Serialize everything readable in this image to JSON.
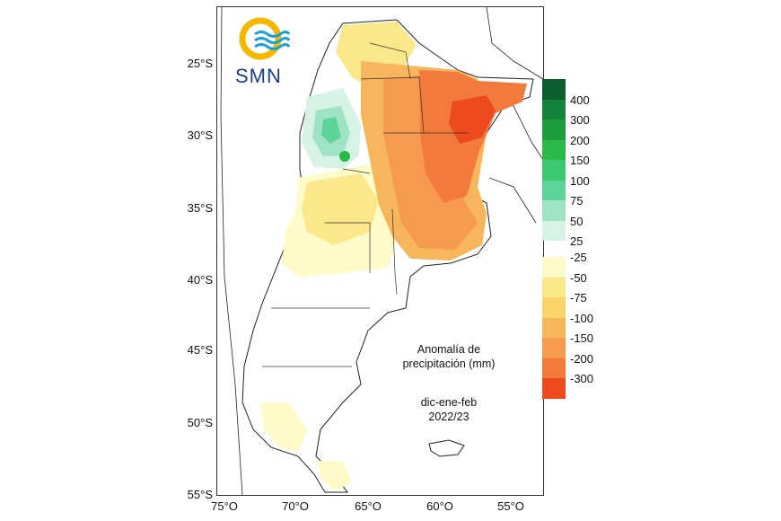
{
  "logo": {
    "text": "SMN",
    "colors": {
      "ring": "#f5b800",
      "waves": "#1aa0d8"
    }
  },
  "axes": {
    "lat_labels": [
      "25°S",
      "30°S",
      "35°S",
      "40°S",
      "45°S",
      "50°S",
      "55°S"
    ],
    "lon_labels": [
      "75°O",
      "70°O",
      "65°O",
      "60°O",
      "55°O"
    ]
  },
  "legend": {
    "title_line1": "Anomalía de",
    "title_line2": "precipitación (mm)",
    "positive": [
      {
        "label": "400",
        "color": "#0b5e2e"
      },
      {
        "label": "300",
        "color": "#13823a"
      },
      {
        "label": "200",
        "color": "#1e9d3e"
      },
      {
        "label": "150",
        "color": "#2db84a"
      },
      {
        "label": "100",
        "color": "#3cc870"
      },
      {
        "label": "75",
        "color": "#5dd49a"
      },
      {
        "label": "50",
        "color": "#9fe3c4"
      },
      {
        "label": "25",
        "color": "#d6f3e6"
      }
    ],
    "negative": [
      {
        "label": "-25",
        "color": "#fffbc8"
      },
      {
        "label": "-50",
        "color": "#fbe88a"
      },
      {
        "label": "-75",
        "color": "#f8d46a"
      },
      {
        "label": "-100",
        "color": "#f7b65c"
      },
      {
        "label": "-150",
        "color": "#f59a4e"
      },
      {
        "label": "-200",
        "color": "#f27a3c"
      },
      {
        "label": "-300",
        "color": "#ee4a20"
      }
    ]
  },
  "period": {
    "months": "dic-ene-feb",
    "season": "2022/23"
  }
}
